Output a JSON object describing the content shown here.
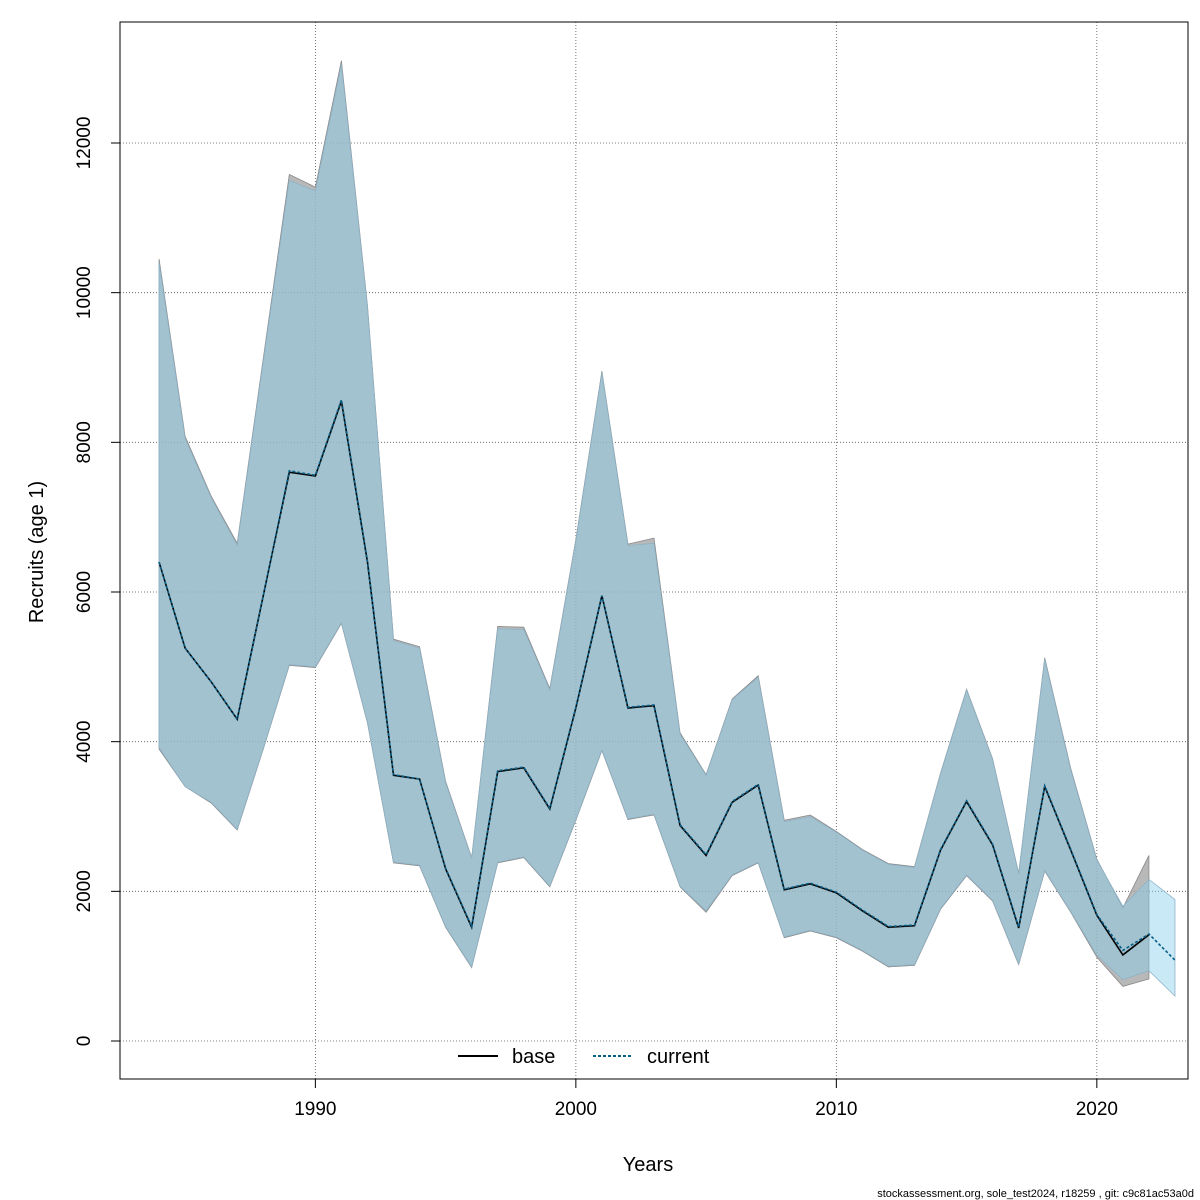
{
  "chart_data": {
    "type": "line",
    "xlabel": "Years",
    "ylabel": "Recruits (age 1)",
    "xlim": [
      1982.5,
      2023.5
    ],
    "ylim": [
      -500,
      16000
    ],
    "x_ticks": [
      1990,
      2000,
      2010,
      2020
    ],
    "y_ticks": [
      0,
      2000,
      4000,
      6000,
      8000,
      10000,
      12000
    ],
    "x_tick_labels": [
      "1990",
      "2000",
      "2010",
      "2020"
    ],
    "y_tick_labels": [
      "0",
      "2000",
      "4000",
      "6000",
      "8000",
      "10000",
      "12000"
    ],
    "grid": true,
    "legend_placement": "bottom-center",
    "legend": [
      {
        "label": "base",
        "style": "solid",
        "color": "#000000"
      },
      {
        "label": "current",
        "style": "dotted",
        "color": "#0a5f86"
      }
    ],
    "series": [
      {
        "name": "base",
        "color": "#000000",
        "band_color": "#a0a0a0",
        "x": [
          1984,
          1985,
          1986,
          1987,
          1988,
          1989,
          1990,
          1991,
          1992,
          1993,
          1994,
          1995,
          1996,
          1997,
          1998,
          1999,
          2000,
          2001,
          2002,
          2003,
          2004,
          2005,
          2006,
          2007,
          2008,
          2009,
          2010,
          2011,
          2012,
          2013,
          2014,
          2015,
          2016,
          2017,
          2018,
          2019,
          2020,
          2021,
          2022
        ],
        "values": [
          6400,
          5250,
          4800,
          4300,
          5950,
          7600,
          7550,
          8550,
          6400,
          3550,
          3500,
          2300,
          1520,
          3600,
          3650,
          3100,
          4450,
          5950,
          4450,
          4480,
          2880,
          2480,
          3190,
          3420,
          2020,
          2100,
          1980,
          1740,
          1520,
          1540,
          2550,
          3200,
          2620,
          1510,
          3400,
          2550,
          1680,
          1150,
          1420
        ],
        "lower": [
          3900,
          3400,
          3180,
          2820,
          3900,
          5020,
          4990,
          5580,
          4250,
          2380,
          2340,
          1520,
          980,
          2380,
          2450,
          2060,
          2950,
          3880,
          2960,
          3020,
          2060,
          1720,
          2210,
          2380,
          1380,
          1470,
          1380,
          1200,
          990,
          1010,
          1760,
          2210,
          1870,
          1020,
          2270,
          1720,
          1120,
          730,
          830
        ],
        "upper": [
          10450,
          8080,
          7280,
          6650,
          9120,
          11580,
          11410,
          13100,
          9830,
          5370,
          5270,
          3470,
          2450,
          5540,
          5530,
          4710,
          6700,
          8950,
          6640,
          6720,
          4120,
          3560,
          4570,
          4880,
          2950,
          3020,
          2800,
          2560,
          2370,
          2330,
          3580,
          4700,
          3770,
          2240,
          5120,
          3640,
          2430,
          1780,
          2480
        ]
      },
      {
        "name": "current",
        "color": "#0a5f86",
        "band_color": "#87ceeb",
        "x": [
          1984,
          1985,
          1986,
          1987,
          1988,
          1989,
          1990,
          1991,
          1992,
          1993,
          1994,
          1995,
          1996,
          1997,
          1998,
          1999,
          2000,
          2001,
          2002,
          2003,
          2004,
          2005,
          2006,
          2007,
          2008,
          2009,
          2010,
          2011,
          2012,
          2013,
          2014,
          2015,
          2016,
          2017,
          2018,
          2019,
          2020,
          2021,
          2022,
          2023
        ],
        "values": [
          6400,
          5250,
          4800,
          4300,
          5950,
          7620,
          7560,
          8570,
          6410,
          3560,
          3500,
          2310,
          1530,
          3610,
          3660,
          3110,
          4460,
          5950,
          4460,
          4490,
          2890,
          2490,
          3200,
          3430,
          2030,
          2110,
          1990,
          1750,
          1530,
          1550,
          2560,
          3210,
          2630,
          1520,
          3410,
          2560,
          1690,
          1210,
          1430,
          1080
        ],
        "lower": [
          3920,
          3400,
          3190,
          2830,
          3910,
          5030,
          5000,
          5590,
          4260,
          2390,
          2350,
          1530,
          990,
          2390,
          2460,
          2070,
          2960,
          3890,
          2970,
          3030,
          2070,
          1740,
          2220,
          2390,
          1390,
          1480,
          1390,
          1210,
          1000,
          1020,
          1770,
          2220,
          1880,
          1030,
          2280,
          1730,
          1150,
          820,
          940,
          600
        ],
        "upper": [
          10400,
          8050,
          7260,
          6620,
          9080,
          11500,
          11360,
          13050,
          9810,
          5350,
          5250,
          3450,
          2440,
          5510,
          5500,
          4690,
          6680,
          8930,
          6620,
          6650,
          4100,
          3550,
          4560,
          4860,
          2930,
          3000,
          2790,
          2550,
          2360,
          2320,
          3570,
          4690,
          3760,
          2230,
          5100,
          3620,
          2420,
          1800,
          2160,
          1890
        ]
      }
    ]
  },
  "footer": {
    "text": "stockassessment.org, sole_test2024, r18259 , git: c9c81ac53a0d"
  }
}
